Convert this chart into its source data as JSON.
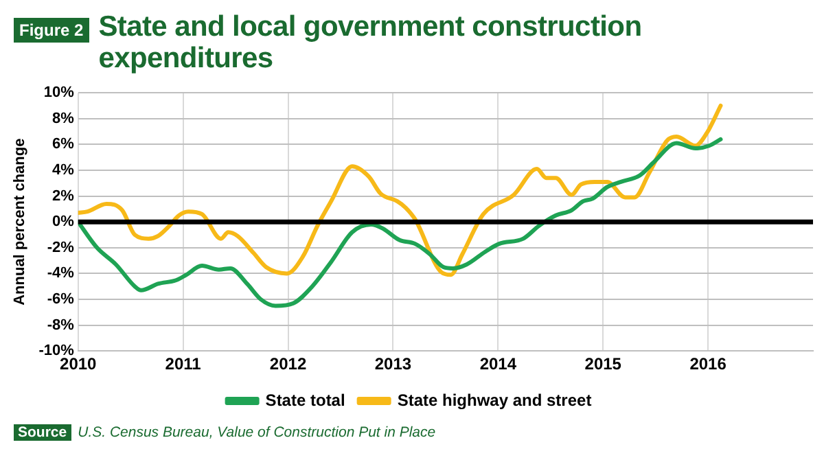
{
  "chart_data": {
    "type": "line",
    "title": "State and local government construction expenditures",
    "ylabel": "Annual percent change",
    "annotations": [
      "Figure 2",
      "Source",
      "U.S. Census Bureau, Value of Construction Put in Place"
    ],
    "xlim": [
      2010,
      2017
    ],
    "xticks": [
      2010,
      2011,
      2012,
      2013,
      2014,
      2015,
      2016
    ],
    "ylim": [
      -10,
      10
    ],
    "yticks": [
      {
        "value": -10,
        "label": "-10%"
      },
      {
        "value": -8,
        "label": "-8%"
      },
      {
        "value": -6,
        "label": "-6%"
      },
      {
        "value": -4,
        "label": "-4%"
      },
      {
        "value": -2,
        "label": "-2%"
      },
      {
        "value": 0,
        "label": "0%"
      },
      {
        "value": 2,
        "label": "2%"
      },
      {
        "value": 4,
        "label": "4%"
      },
      {
        "value": 6,
        "label": "6%"
      },
      {
        "value": 8,
        "label": "8%"
      },
      {
        "value": 10,
        "label": "10%"
      }
    ],
    "grid": true,
    "legend": "bottom",
    "ref_lines": [
      {
        "axis": "y",
        "value": 0,
        "label": null,
        "color": "#000000"
      }
    ],
    "series": [
      {
        "name": "State total",
        "color": "#1fa354",
        "x": [
          2010,
          2010.18,
          2010.36,
          2010.54,
          2010.6,
          2010.76,
          2010.94,
          2011.03,
          2011.18,
          2011.34,
          2011.45,
          2011.61,
          2011.74,
          2011.88,
          2012.05,
          2012.23,
          2012.41,
          2012.61,
          2012.79,
          2012.9,
          2013.06,
          2013.21,
          2013.35,
          2013.48,
          2013.57,
          2013.7,
          2013.88,
          2014.01,
          2014.24,
          2014.39,
          2014.55,
          2014.7,
          2014.81,
          2014.9,
          2015.04,
          2015.17,
          2015.35,
          2015.48,
          2015.7,
          2015.88,
          2016.01,
          2016.12
        ],
        "values": [
          0,
          -2.0,
          -3.3,
          -5.0,
          -5.3,
          -4.8,
          -4.5,
          -4.1,
          -3.4,
          -3.7,
          -3.6,
          -4.8,
          -6.0,
          -6.5,
          -6.3,
          -5.0,
          -3.1,
          -0.8,
          -0.2,
          -0.5,
          -1.4,
          -1.7,
          -2.5,
          -3.5,
          -3.6,
          -3.3,
          -2.3,
          -1.7,
          -1.3,
          -0.3,
          0.5,
          0.9,
          1.6,
          1.8,
          2.7,
          3.1,
          3.6,
          4.6,
          6.1,
          5.7,
          5.9,
          6.4
        ]
      },
      {
        "name": "State highway and street",
        "color": "#f7b918",
        "x": [
          2010,
          2010.09,
          2010.27,
          2010.42,
          2010.54,
          2010.67,
          2010.76,
          2010.87,
          2010.96,
          2011.05,
          2011.18,
          2011.36,
          2011.43,
          2011.52,
          2011.67,
          2011.79,
          2011.99,
          2012.14,
          2012.28,
          2012.41,
          2012.61,
          2012.77,
          2012.88,
          2013.04,
          2013.12,
          2013.21,
          2013.46,
          2013.55,
          2013.66,
          2013.86,
          2014.15,
          2014.37,
          2014.46,
          2014.55,
          2014.7,
          2014.79,
          2014.92,
          2015.04,
          2015.21,
          2015.3,
          2015.44,
          2015.61,
          2015.7,
          2015.88,
          2015.99,
          2016.12
        ],
        "values": [
          0.7,
          0.8,
          1.4,
          0.9,
          -1.0,
          -1.3,
          -1.1,
          -0.3,
          0.5,
          0.8,
          0.6,
          -1.3,
          -0.8,
          -1.1,
          -2.4,
          -3.5,
          -4.0,
          -2.7,
          -0.3,
          1.6,
          4.3,
          3.5,
          2.2,
          1.6,
          1.1,
          0.2,
          -3.9,
          -4.1,
          -2.5,
          0.6,
          2.1,
          4.1,
          3.4,
          3.4,
          2.1,
          2.9,
          3.1,
          3.1,
          1.9,
          1.9,
          3.8,
          6.3,
          6.6,
          5.9,
          6.9,
          9.0
        ]
      }
    ]
  }
}
